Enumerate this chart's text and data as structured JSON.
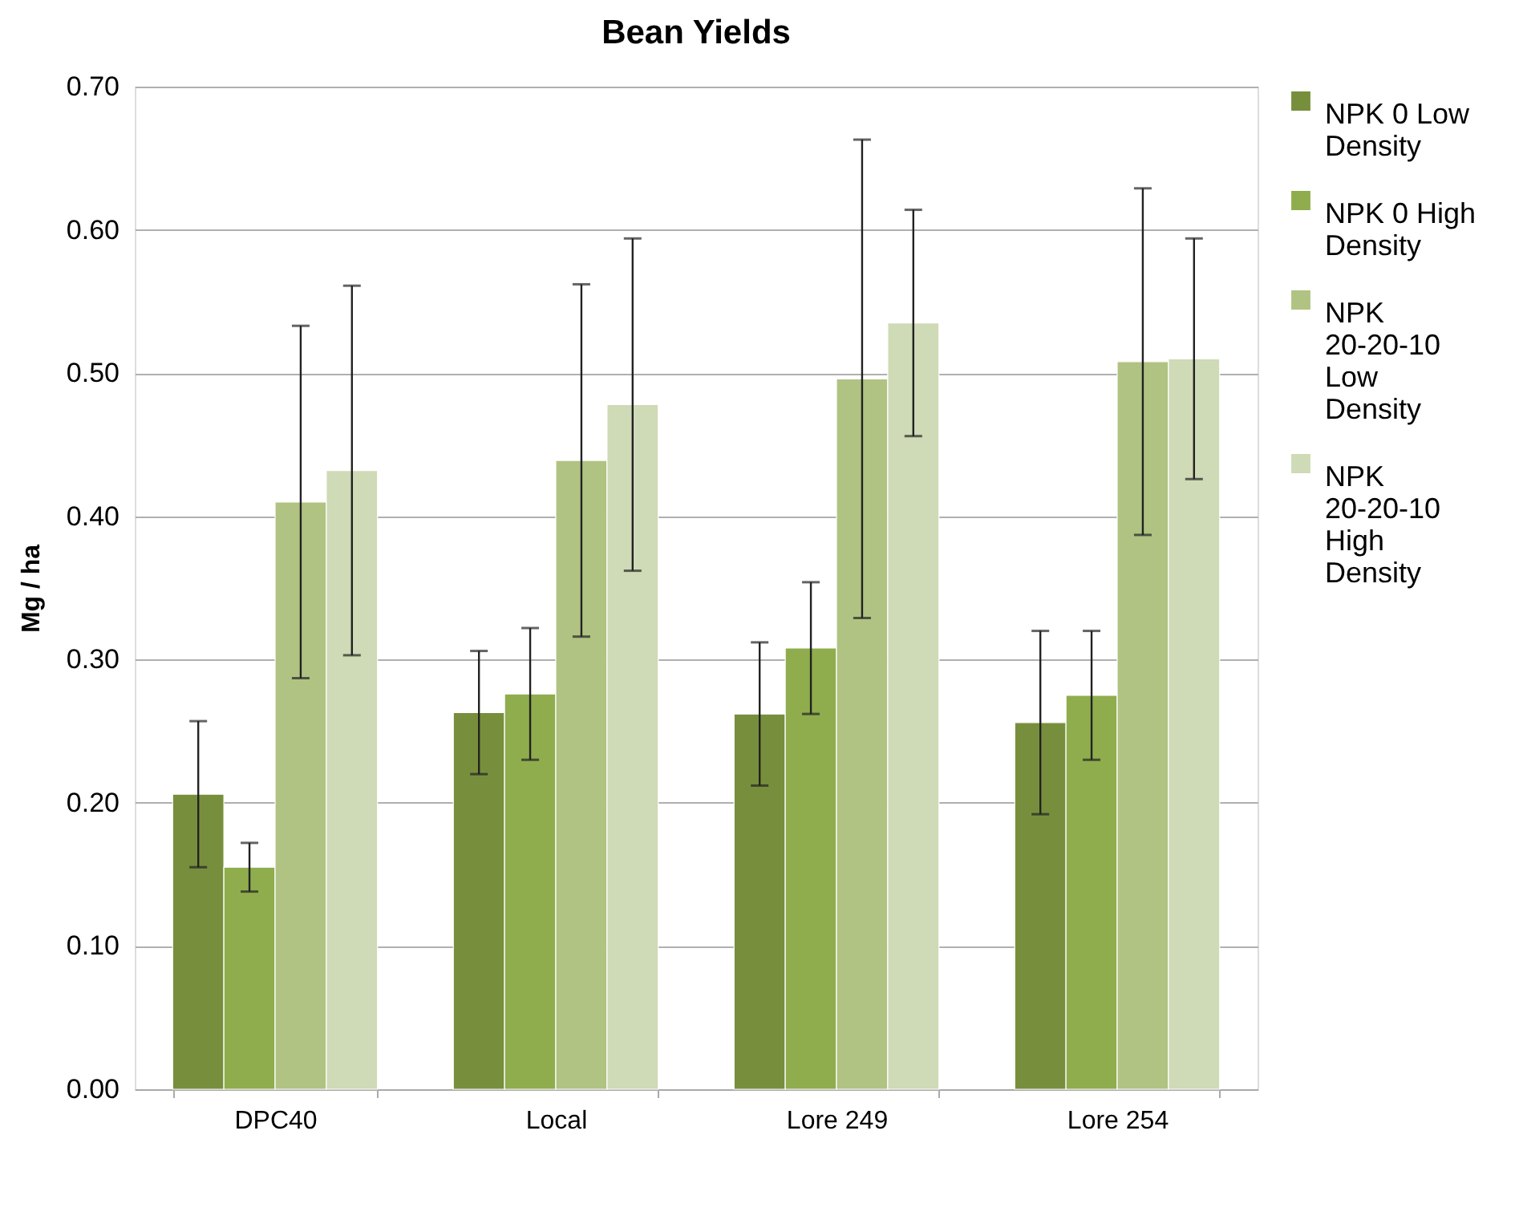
{
  "chart_data": {
    "type": "bar",
    "title": "Bean Yields",
    "ylabel": "Mg / ha",
    "categories": [
      "DPC40",
      "Local",
      "Lore 249",
      "Lore 254"
    ],
    "series": [
      {
        "name": "NPK 0 Low Density",
        "color": "#778f3c",
        "values": [
          0.206,
          0.263,
          0.262,
          0.256
        ],
        "errors": [
          0.051,
          0.043,
          0.05,
          0.064
        ]
      },
      {
        "name": "NPK 0 High Density",
        "color": "#8fad4d",
        "values": [
          0.155,
          0.276,
          0.308,
          0.275
        ],
        "errors": [
          0.017,
          0.046,
          0.046,
          0.045
        ]
      },
      {
        "name": "NPK 20-20-10 Low Density",
        "color": "#b0c382",
        "values": [
          0.41,
          0.439,
          0.496,
          0.508
        ],
        "errors": [
          0.123,
          0.123,
          0.167,
          0.121
        ]
      },
      {
        "name": "NPK 20-20-10 High Density",
        "color": "#cfdab6",
        "values": [
          0.432,
          0.478,
          0.535,
          0.51
        ],
        "errors": [
          0.129,
          0.116,
          0.079,
          0.084
        ]
      }
    ],
    "ylim": [
      0,
      0.7
    ],
    "yticks": [
      {
        "value": 0,
        "label": "0.00"
      },
      {
        "value": 0.1,
        "label": "0.10"
      },
      {
        "value": 0.2,
        "label": "0.20"
      },
      {
        "value": 0.3,
        "label": "0.30"
      },
      {
        "value": 0.4,
        "label": "0.40"
      },
      {
        "value": 0.5,
        "label": "0.50"
      },
      {
        "value": 0.6,
        "label": "0.60"
      },
      {
        "value": 0.7,
        "label": "0.70"
      }
    ],
    "grid": "y",
    "legend": "right"
  }
}
